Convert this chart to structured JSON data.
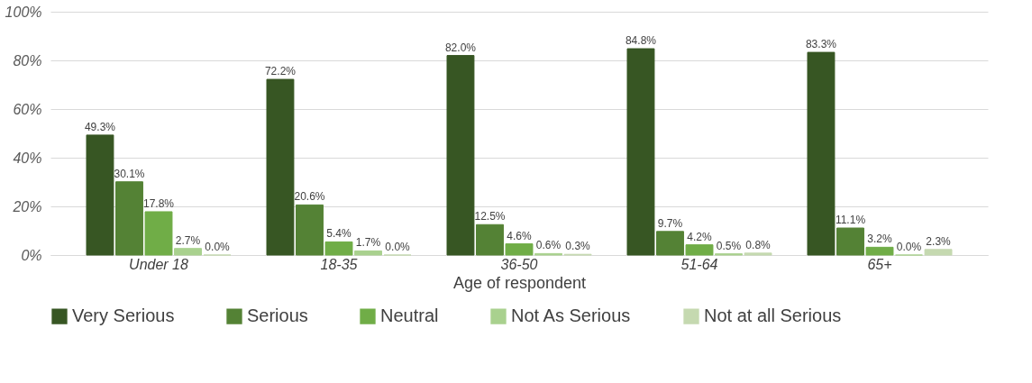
{
  "chart_data": {
    "type": "bar",
    "xlabel": "Age of respondent",
    "categories": [
      "Under 18",
      "18-35",
      "36-50",
      "51-64",
      "65+"
    ],
    "series": [
      {
        "name": "Very Serious",
        "color": "#375623",
        "values": [
          49.3,
          72.2,
          82.0,
          84.8,
          83.3
        ],
        "value_labels": [
          "49.3%",
          "72.2%",
          "82.0%",
          "84.8%",
          "83.3%"
        ]
      },
      {
        "name": "Serious",
        "color": "#548235",
        "values": [
          30.1,
          20.6,
          12.5,
          9.7,
          11.1
        ],
        "value_labels": [
          "30.1%",
          "20.6%",
          "12.5%",
          "9.7%",
          "11.1%"
        ]
      },
      {
        "name": "Neutral",
        "color": "#70ad47",
        "values": [
          17.8,
          5.4,
          4.6,
          4.2,
          3.2
        ],
        "value_labels": [
          "17.8%",
          "5.4%",
          "4.6%",
          "4.2%",
          "3.2%"
        ]
      },
      {
        "name": "Not As Serious",
        "color": "#a9d18e",
        "values": [
          2.7,
          1.7,
          0.6,
          0.5,
          0.0
        ],
        "value_labels": [
          "2.7%",
          "1.7%",
          "0.6%",
          "0.5%",
          "0.0%"
        ]
      },
      {
        "name": "Not at all Serious",
        "color": "#c5d9b0",
        "values": [
          0.0,
          0.0,
          0.3,
          0.8,
          2.3
        ],
        "value_labels": [
          "0.0%",
          "0.0%",
          "0.3%",
          "0.8%",
          "2.3%"
        ]
      }
    ],
    "ylim": [
      0,
      100
    ],
    "yticks": [
      {
        "value": 0,
        "label": "0%"
      },
      {
        "value": 20,
        "label": "20%"
      },
      {
        "value": 40,
        "label": "40%"
      },
      {
        "value": 60,
        "label": "60%"
      },
      {
        "value": 80,
        "label": "80%"
      },
      {
        "value": 100,
        "label": "100%"
      }
    ],
    "grid": "y",
    "legend": "bottom"
  }
}
